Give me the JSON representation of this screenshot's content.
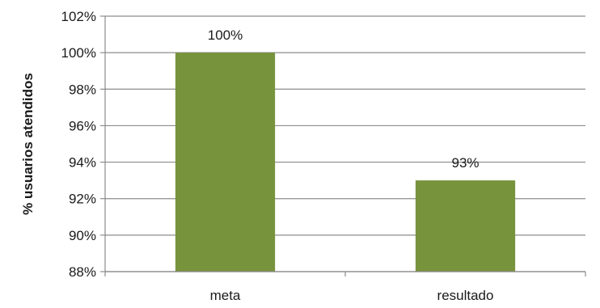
{
  "chart_data": {
    "type": "bar",
    "categories": [
      "meta",
      "resultado"
    ],
    "values": [
      100,
      93
    ],
    "value_labels": [
      "100%",
      "93%"
    ],
    "ylabel": "% usuarios atendidos",
    "xlabel": "",
    "ylim": [
      88,
      102
    ],
    "ytick_step": 2,
    "ytick_labels": [
      "88%",
      "90%",
      "92%",
      "94%",
      "96%",
      "98%",
      "100%",
      "102%"
    ],
    "grid": true,
    "legend": "none",
    "bar_color": "#77933c",
    "grid_color": "#8c8c8c"
  }
}
